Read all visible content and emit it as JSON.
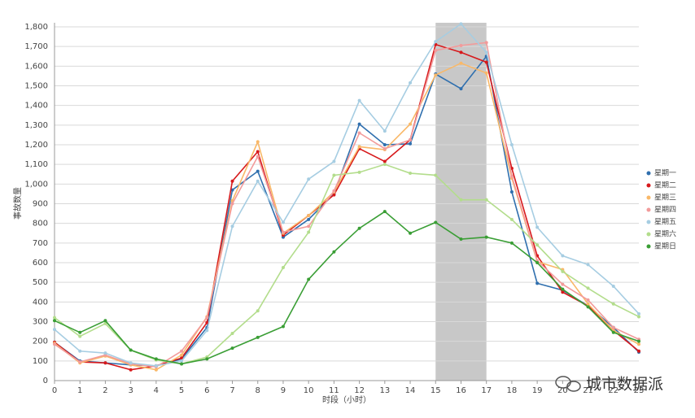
{
  "chart_data": {
    "type": "line",
    "x_label": "时段（小时）",
    "y_label": "事故数量",
    "watermark": "城市数据派",
    "x": [
      0,
      1,
      2,
      3,
      4,
      5,
      6,
      7,
      8,
      9,
      10,
      11,
      12,
      13,
      14,
      15,
      16,
      17,
      18,
      19,
      20,
      21,
      22,
      23
    ],
    "xlim": [
      0,
      23
    ],
    "xticks": [
      0,
      1,
      2,
      3,
      4,
      5,
      6,
      7,
      8,
      9,
      10,
      11,
      12,
      13,
      14,
      15,
      16,
      17,
      18,
      19,
      20,
      21,
      22,
      23
    ],
    "ylim": [
      0,
      1800
    ],
    "yticks": [
      0,
      100,
      200,
      300,
      400,
      500,
      600,
      700,
      800,
      900,
      {
        "value": 1000,
        "label": "1,000"
      },
      {
        "value": 1100,
        "label": "1,100"
      },
      {
        "value": 1200,
        "label": "1,200"
      },
      {
        "value": 1300,
        "label": "1,300"
      },
      {
        "value": 1400,
        "label": "1,400"
      },
      {
        "value": 1500,
        "label": "1,500"
      },
      {
        "value": 1600,
        "label": "1,600"
      },
      {
        "value": 1700,
        "label": "1,700"
      },
      {
        "value": 1800,
        "label": "1,800"
      }
    ],
    "grid": true,
    "legend": "right",
    "shaded_range": [
      15,
      17
    ],
    "shade_color": "#c8c8c8",
    "series": [
      {
        "name": "星期一",
        "color": "#2f6fae",
        "values": [
          195,
          100,
          90,
          80,
          75,
          110,
          270,
          970,
          1065,
          730,
          820,
          950,
          1305,
          1200,
          1205,
          1560,
          1485,
          1650,
          960,
          495,
          460,
          380,
          270,
          145
        ]
      },
      {
        "name": "星期二",
        "color": "#d7191c",
        "values": [
          195,
          95,
          90,
          55,
          75,
          115,
          295,
          1015,
          1165,
          740,
          840,
          945,
          1180,
          1115,
          1225,
          1710,
          1670,
          1620,
          1080,
          635,
          450,
          380,
          255,
          150
        ]
      },
      {
        "name": "星期三",
        "color": "#f9b868",
        "values": [
          190,
          90,
          125,
          80,
          55,
          130,
          325,
          915,
          1215,
          750,
          840,
          960,
          1190,
          1175,
          1305,
          1555,
          1615,
          1565,
          1030,
          605,
          565,
          390,
          255,
          185
        ]
      },
      {
        "name": "星期四",
        "color": "#f29b9b",
        "values": [
          185,
          95,
          130,
          85,
          70,
          150,
          320,
          900,
          1140,
          755,
          785,
          965,
          1260,
          1180,
          1225,
          1680,
          1705,
          1720,
          1040,
          610,
          490,
          410,
          270,
          210
        ]
      },
      {
        "name": "星期五",
        "color": "#a6cde2",
        "values": [
          260,
          150,
          140,
          90,
          75,
          100,
          255,
          785,
          1015,
          805,
          1025,
          1115,
          1425,
          1270,
          1515,
          1725,
          1815,
          1670,
          1200,
          780,
          635,
          590,
          480,
          340
        ]
      },
      {
        "name": "星期六",
        "color": "#b3dd8c",
        "values": [
          320,
          225,
          290,
          155,
          105,
          85,
          120,
          240,
          355,
          575,
          755,
          1045,
          1060,
          1100,
          1055,
          1045,
          920,
          920,
          820,
          690,
          555,
          470,
          390,
          325
        ]
      },
      {
        "name": "星期日",
        "color": "#3a9e35",
        "values": [
          305,
          245,
          305,
          155,
          110,
          85,
          110,
          165,
          220,
          275,
          515,
          655,
          775,
          860,
          750,
          805,
          720,
          730,
          700,
          600,
          465,
          375,
          245,
          200
        ]
      }
    ]
  }
}
